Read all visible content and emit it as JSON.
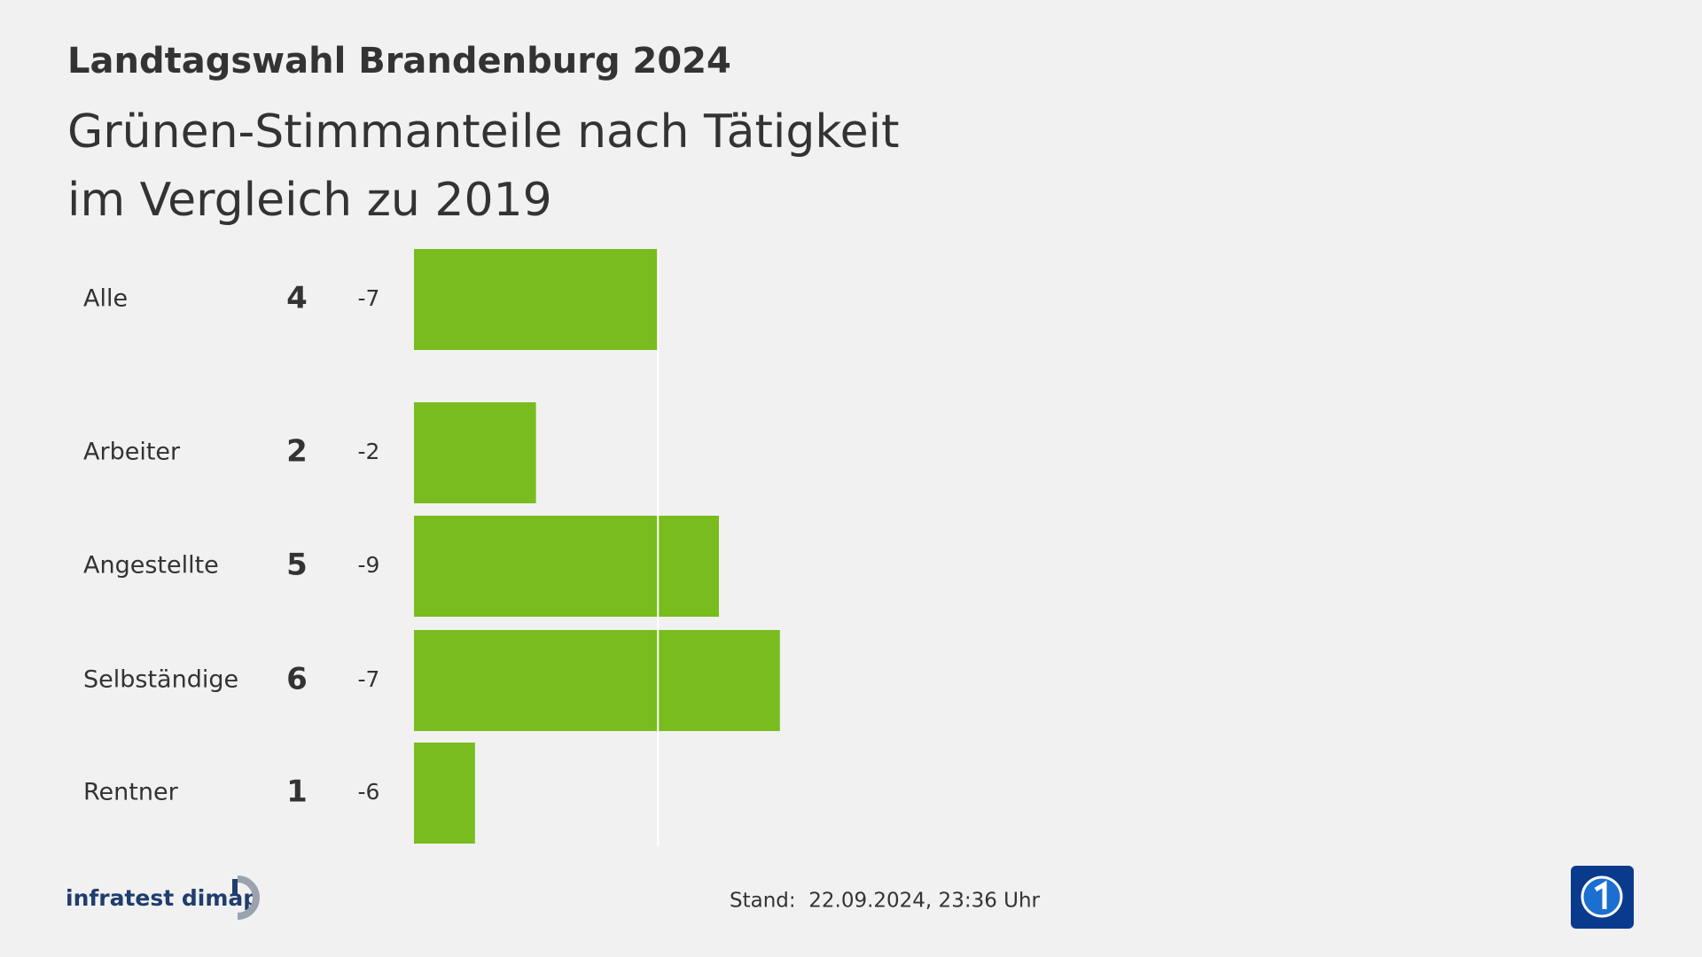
{
  "chart_data": {
    "type": "bar",
    "orientation": "horizontal",
    "heading": "Landtagswahl Brandenburg 2024",
    "title": [
      "Grünen-Stimmanteile nach Tätigkeit",
      "im Vergleich zu 2019"
    ],
    "categories": [
      "Alle",
      "Arbeiter",
      "Angestellte",
      "Selbständige",
      "Rentner"
    ],
    "values": [
      4,
      2,
      5,
      6,
      1
    ],
    "changes": [
      -7,
      -2,
      -9,
      -7,
      -6
    ],
    "color": "#78bc1e"
  },
  "footer": {
    "source": "infratest dimap",
    "stand": "Stand:  22.09.2024, 23:36 Uhr"
  }
}
